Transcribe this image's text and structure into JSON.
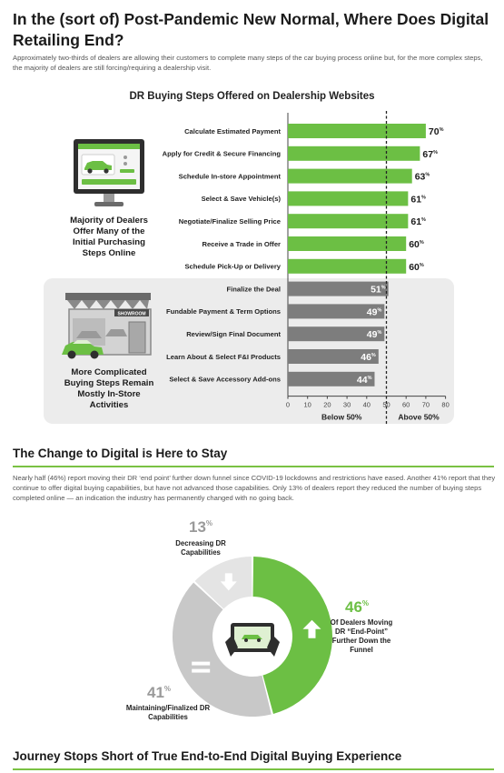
{
  "header": {
    "title": "In the (sort of) Post-Pandemic New Normal, Where Does Digital Retailing End?",
    "intro": "Approximately two-thirds of dealers are allowing their customers to complete many steps of the car buying process online but, for the more complex steps, the majority of dealers are still forcing/requiring a dealership visit."
  },
  "chart_data": [
    {
      "type": "bar",
      "orientation": "horizontal",
      "title": "DR Buying Steps Offered on Dealership Websites",
      "categories": [
        "Calculate Estimated Payment",
        "Apply for Credit & Secure Financing",
        "Schedule In-store Appointment",
        "Select & Save Vehicle(s)",
        "Negotiate/Finalize Selling Price",
        "Receive a Trade in Offer",
        "Schedule Pick-Up or Delivery",
        "Finalize the Deal",
        "Fundable Payment & Term Options",
        "Review/Sign Final Document",
        "Learn About & Select F&I Products",
        "Select & Save Accessory Add-ons"
      ],
      "values": [
        70,
        67,
        63,
        61,
        61,
        60,
        60,
        51,
        49,
        49,
        46,
        44
      ],
      "value_suffix": "%",
      "xlim": [
        0,
        80
      ],
      "xticks": [
        0,
        10,
        20,
        30,
        40,
        50,
        60,
        70,
        80
      ],
      "reference_line": 50,
      "region_labels": [
        "Below 50%",
        "Above 50%"
      ],
      "group_labels": [
        "Majority of Dealers Offer Many of the Initial Purchasing Steps Online",
        "More Complicated Buying Steps Remain Mostly In-Store Activities"
      ],
      "colors": {
        "online": "#6cbf44",
        "in_store": "#7d7d7d"
      }
    },
    {
      "type": "pie",
      "variant": "donut",
      "slices": [
        {
          "value": 46,
          "pct_label": "46",
          "label": "Of Dealers Moving DR “End-Point” Further Down the Funnel",
          "color": "#6cbf44"
        },
        {
          "value": 41,
          "pct_label": "41",
          "label": "Maintaining/Finalized DR Capabilities",
          "color": "#c8c8c8"
        },
        {
          "value": 13,
          "pct_label": "13",
          "label": "Decreasing DR Capabilities",
          "color": "#e4e4e4"
        }
      ],
      "pct_suffix": "%"
    }
  ],
  "section2": {
    "title": "The Change to Digital is Here to Stay",
    "text": "Nearly half (46%) report moving their DR ‘end point’ further down funnel since COVID-19 lockdowns and restrictions have eased. Another 41% report that they continue to offer digital buying capabilities, but have not advanced those capabilities. Only 13% of dealers report they reduced the number of buying steps completed online — an indication the industry has permanently changed with no going back."
  },
  "section3": {
    "title": "Journey Stops Short of True End-to-End Digital Buying Experience"
  },
  "icons": {
    "monitor": "monitor-car-icon",
    "showroom": "showroom-car-icon",
    "tablet": "tablet-hands-icon",
    "up": "arrow-up-icon",
    "down": "arrow-down-icon",
    "equal": "equals-icon"
  },
  "showroom_sign": "SHOWROOM"
}
